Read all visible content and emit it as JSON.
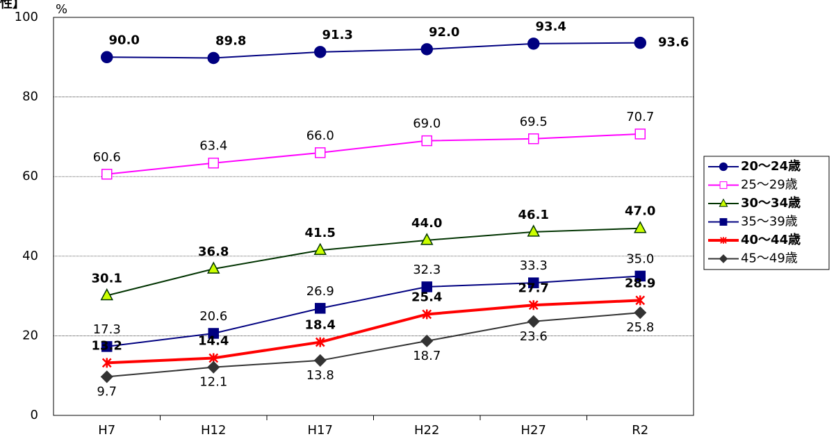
{
  "chart_data": {
    "type": "line",
    "title": "性】",
    "y_unit": "%",
    "categories": [
      "H7",
      "H12",
      "H17",
      "H22",
      "H27",
      "R2"
    ],
    "ylim": [
      0,
      100
    ],
    "yticks": [
      0,
      20,
      40,
      60,
      80,
      100
    ],
    "grid": true,
    "legend": "right",
    "series": [
      {
        "name": "20～24歳",
        "color": "#000080",
        "marker": "circle",
        "marker_fill": "#000080",
        "line_width": 2,
        "bold": true,
        "values": [
          90.0,
          89.8,
          91.3,
          92.0,
          93.4,
          93.6
        ],
        "value_labels": [
          "90.0",
          "89.8",
          "91.3",
          "92.0",
          "93.4",
          "93.6"
        ]
      },
      {
        "name": "25～29歳",
        "color": "#ff00ff",
        "marker": "square",
        "marker_fill": "#ffffff",
        "line_width": 2,
        "bold": false,
        "values": [
          60.6,
          63.4,
          66.0,
          69.0,
          69.5,
          70.7
        ],
        "value_labels": [
          "60.6",
          "63.4",
          "66.0",
          "69.0",
          "69.5",
          "70.7"
        ]
      },
      {
        "name": "30～34歳",
        "color": "#003300",
        "marker": "triangle",
        "marker_fill": "#ccff00",
        "line_width": 2,
        "bold": true,
        "values": [
          30.1,
          36.8,
          41.5,
          44.0,
          46.1,
          47.0
        ],
        "value_labels": [
          "30.1",
          "36.8",
          "41.5",
          "44.0",
          "46.1",
          "47.0"
        ]
      },
      {
        "name": "35～39歳",
        "color": "#000080",
        "marker": "square",
        "marker_fill": "#000080",
        "line_width": 2,
        "bold": false,
        "values": [
          17.3,
          20.6,
          26.9,
          32.3,
          33.3,
          35.0
        ],
        "value_labels": [
          "17.3",
          "20.6",
          "26.9",
          "32.3",
          "33.3",
          "35.0"
        ]
      },
      {
        "name": "40～44歳",
        "color": "#ff0000",
        "marker": "star",
        "marker_fill": "#ff0000",
        "line_width": 4,
        "bold": true,
        "values": [
          13.2,
          14.4,
          18.4,
          25.4,
          27.7,
          28.9
        ],
        "value_labels": [
          "13.2",
          "14.4",
          "18.4",
          "25.4",
          "27.7",
          "28.9"
        ]
      },
      {
        "name": "45～49歳",
        "color": "#333333",
        "marker": "diamond",
        "marker_fill": "#333333",
        "line_width": 2,
        "bold": false,
        "values": [
          9.7,
          12.1,
          13.8,
          18.7,
          23.6,
          25.8
        ],
        "value_labels": [
          "9.7",
          "12.1",
          "13.8",
          "18.7",
          "23.6",
          "25.8"
        ]
      }
    ]
  }
}
